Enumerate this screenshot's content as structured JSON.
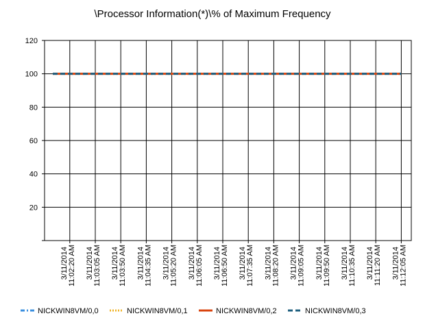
{
  "chart_data": {
    "type": "line",
    "title": "\\Processor Information(*)\\% of Maximum Frequency",
    "categories": [
      null,
      null,
      "3/11/2014 11:02:20 AM",
      null,
      null,
      "3/11/2014 11:03:05 AM",
      null,
      null,
      "3/11/2014 11:03:50 AM",
      null,
      null,
      "3/11/2014 11:04:35 AM",
      null,
      null,
      "3/11/2014 11:05:20 AM",
      null,
      null,
      "3/11/2014 11:06:05 AM",
      null,
      null,
      "3/11/2014 11:06:50 AM",
      null,
      null,
      "3/11/2014 11:07:35 AM",
      null,
      null,
      "3/11/2014 11:08:20 AM",
      null,
      null,
      "3/11/2014 11:09:05 AM",
      null,
      null,
      "3/11/2014 11:09:50 AM",
      null,
      null,
      "3/11/2014 11:10:35 AM",
      null,
      null,
      "3/11/2014 11:11:20 AM",
      null,
      null,
      "3/11/2014 11:12:05 AM"
    ],
    "series": [
      {
        "name": "NICKWIN8VM/0,0",
        "color": "#3a8fdf",
        "dash": "6 3 2 3",
        "values": [
          100,
          100,
          100,
          100,
          100,
          100,
          100,
          100,
          100,
          100,
          100,
          100,
          100,
          100,
          100,
          100,
          100,
          100,
          100,
          100,
          100,
          100,
          100,
          100,
          100,
          100,
          100,
          100,
          100,
          100,
          100,
          100,
          100,
          100,
          100,
          100,
          100,
          100,
          100,
          100,
          100,
          100
        ]
      },
      {
        "name": "NICKWIN8VM/0,1",
        "color": "#f0b429",
        "dash": "2 2",
        "values": [
          100,
          100,
          100,
          100,
          100,
          100,
          100,
          100,
          100,
          100,
          100,
          100,
          100,
          100,
          100,
          100,
          100,
          100,
          100,
          100,
          100,
          100,
          100,
          100,
          100,
          100,
          100,
          100,
          100,
          100,
          100,
          100,
          100,
          100,
          100,
          100,
          100,
          100,
          100,
          100,
          100,
          100
        ]
      },
      {
        "name": "NICKWIN8VM/0,2",
        "color": "#d9440f",
        "dash": "none",
        "values": [
          100,
          100,
          100,
          100,
          100,
          100,
          100,
          100,
          100,
          100,
          100,
          100,
          100,
          100,
          100,
          100,
          100,
          100,
          100,
          100,
          100,
          100,
          100,
          100,
          100,
          100,
          100,
          100,
          100,
          100,
          100,
          100,
          100,
          100,
          100,
          100,
          100,
          100,
          100,
          100,
          100,
          100
        ]
      },
      {
        "name": "NICKWIN8VM/0,3",
        "color": "#1f5f7f",
        "dash": "7 4",
        "values": [
          100,
          100,
          100,
          100,
          100,
          100,
          100,
          100,
          100,
          100,
          100,
          100,
          100,
          100,
          100,
          100,
          100,
          100,
          100,
          100,
          100,
          100,
          100,
          100,
          100,
          100,
          100,
          100,
          100,
          100,
          100,
          100,
          100,
          100,
          100,
          100,
          100,
          100,
          100,
          100,
          100,
          100
        ]
      }
    ],
    "ylim": [
      0,
      120
    ],
    "yticks": [
      20,
      40,
      60,
      80,
      100,
      120
    ],
    "grid": true,
    "legend": "bottom"
  }
}
